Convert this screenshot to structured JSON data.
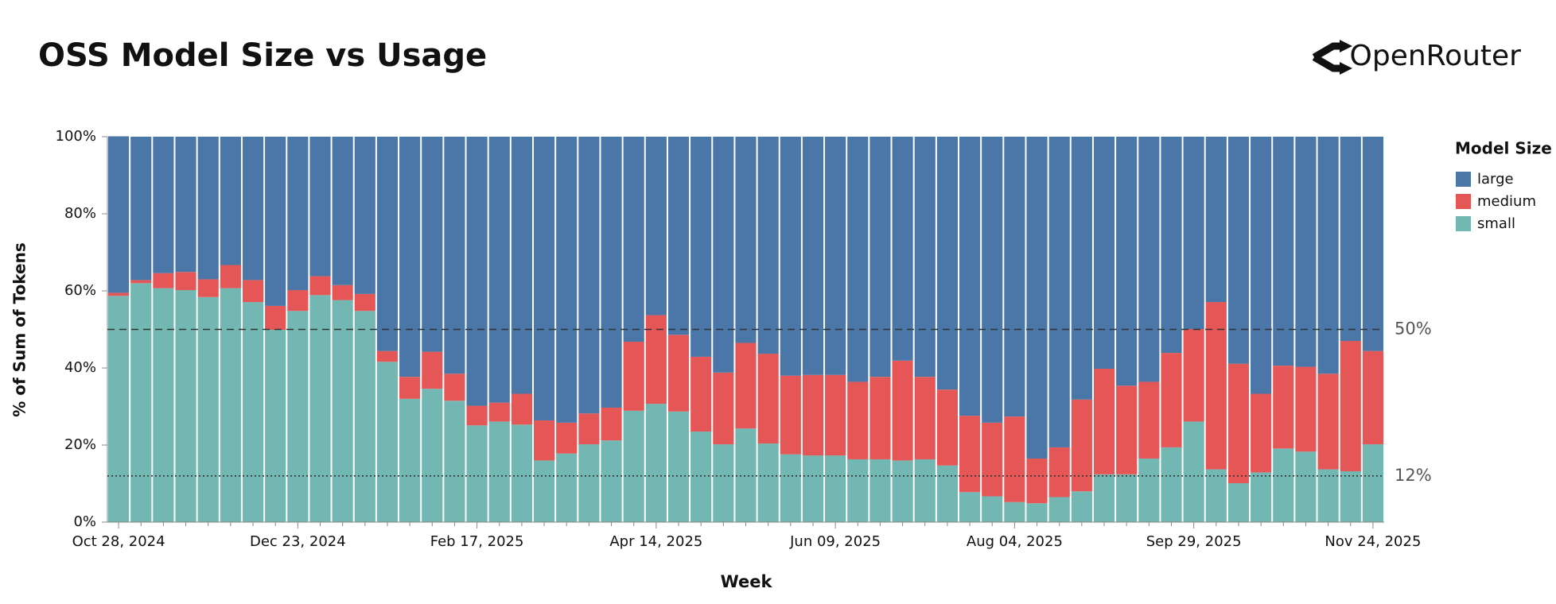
{
  "brand": "OpenRouter",
  "chart_data": {
    "type": "stacked-bar-percent",
    "title": "OSS Model Size vs Usage",
    "x_label": "Week",
    "y_label": "% of Sum of Tokens",
    "legend_title": "Model Size",
    "legend_position": "right",
    "categories": [
      "Oct 28, 2024",
      null,
      null,
      null,
      null,
      null,
      null,
      null,
      "Dec 23, 2024",
      null,
      null,
      null,
      null,
      null,
      null,
      null,
      "Feb 17, 2025",
      null,
      null,
      null,
      null,
      null,
      null,
      null,
      "Apr 14, 2025",
      null,
      null,
      null,
      null,
      null,
      null,
      null,
      "Jun 09, 2025",
      null,
      null,
      null,
      null,
      null,
      null,
      null,
      "Aug 04, 2025",
      null,
      null,
      null,
      null,
      null,
      null,
      null,
      "Sep 29, 2025",
      null,
      null,
      null,
      null,
      null,
      null,
      null,
      "Nov 24, 2025"
    ],
    "series": [
      {
        "name": "large",
        "color": "#4a76a8",
        "values": [
          40.6,
          37.2,
          35.4,
          35.1,
          37.0,
          33.3,
          37.2,
          43.9,
          39.8,
          36.2,
          38.5,
          40.8,
          55.6,
          62.3,
          55.8,
          61.5,
          69.8,
          69.0,
          66.7,
          73.6,
          74.2,
          71.8,
          70.3,
          53.2,
          46.3,
          51.4,
          57.1,
          61.2,
          53.5,
          56.3,
          62.0,
          61.8,
          61.8,
          63.6,
          62.3,
          58.1,
          62.3,
          65.6,
          72.4,
          74.2,
          72.6,
          83.5,
          80.6,
          68.2,
          60.2,
          64.6,
          63.6,
          56.1,
          49.9,
          42.9,
          58.9,
          66.7,
          59.4,
          59.7,
          61.5,
          53.0,
          55.6
        ]
      },
      {
        "name": "medium",
        "color": "#e45756",
        "values": [
          0.8,
          0.8,
          3.9,
          4.7,
          4.6,
          6.0,
          5.7,
          6.2,
          5.4,
          4.9,
          3.9,
          4.4,
          2.8,
          5.7,
          9.6,
          7.0,
          5.1,
          4.9,
          8.0,
          10.4,
          8.0,
          8.0,
          8.5,
          17.9,
          23.0,
          19.9,
          19.4,
          18.6,
          22.2,
          23.3,
          20.4,
          20.9,
          20.9,
          20.1,
          21.4,
          25.9,
          21.4,
          19.7,
          19.8,
          19.1,
          22.2,
          11.6,
          12.9,
          23.8,
          27.4,
          23.0,
          19.9,
          24.5,
          24.0,
          43.4,
          31.0,
          20.4,
          21.5,
          22.0,
          24.8,
          33.8,
          24.2
        ]
      },
      {
        "name": "small",
        "color": "#72b7b2",
        "values": [
          58.7,
          62.0,
          60.7,
          60.2,
          58.4,
          60.7,
          57.1,
          49.9,
          54.8,
          58.9,
          57.6,
          54.8,
          41.6,
          32.0,
          34.6,
          31.5,
          25.1,
          26.1,
          25.3,
          16.0,
          17.8,
          20.2,
          21.2,
          28.9,
          30.7,
          28.7,
          23.5,
          20.2,
          24.3,
          20.4,
          17.6,
          17.3,
          17.3,
          16.3,
          16.3,
          16.0,
          16.3,
          14.7,
          7.8,
          6.7,
          5.2,
          4.9,
          6.5,
          8.0,
          12.4,
          12.4,
          16.5,
          19.4,
          26.1,
          13.7,
          10.1,
          12.9,
          19.1,
          18.3,
          13.7,
          13.2,
          20.2
        ]
      }
    ],
    "ylim": [
      0,
      100
    ],
    "yticks": [
      {
        "value": 0,
        "label": "0%"
      },
      {
        "value": 20,
        "label": "20%"
      },
      {
        "value": 40,
        "label": "40%"
      },
      {
        "value": 60,
        "label": "60%"
      },
      {
        "value": 80,
        "label": "80%"
      },
      {
        "value": 100,
        "label": "100%"
      }
    ],
    "reference_lines": [
      {
        "value": 50,
        "label": "50%",
        "style": "dashed"
      },
      {
        "value": 12,
        "label": "12%",
        "style": "dotted"
      }
    ]
  }
}
